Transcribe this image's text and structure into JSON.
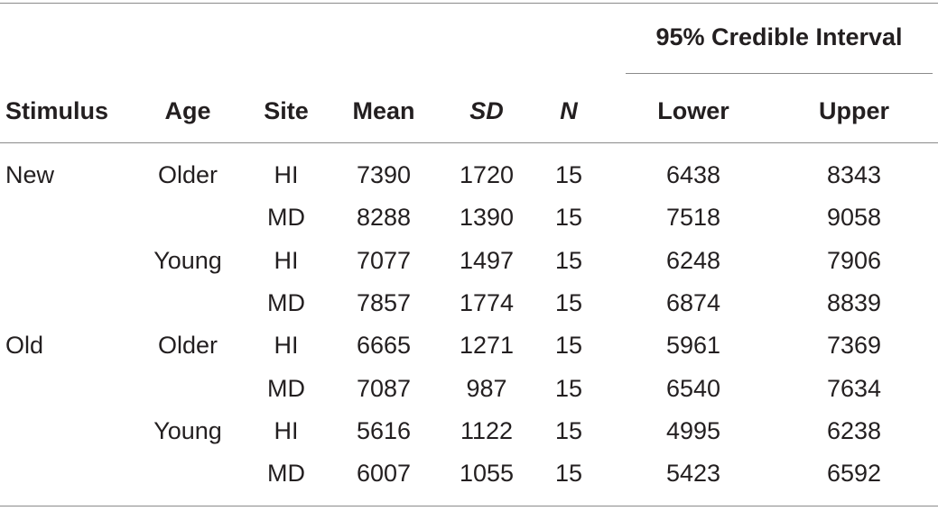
{
  "table": {
    "group_header": "95% Credible Interval",
    "columns": [
      "Stimulus",
      "Age",
      "Site",
      "Mean",
      "SD",
      "N",
      "Lower",
      "Upper"
    ],
    "rows": [
      {
        "stimulus": "New",
        "age": "Older",
        "site": "HI",
        "mean": "7390",
        "sd": "1720",
        "n": "15",
        "lower": "6438",
        "upper": "8343"
      },
      {
        "stimulus": "",
        "age": "",
        "site": "MD",
        "mean": "8288",
        "sd": "1390",
        "n": "15",
        "lower": "7518",
        "upper": "9058"
      },
      {
        "stimulus": "",
        "age": "Young",
        "site": "HI",
        "mean": "7077",
        "sd": "1497",
        "n": "15",
        "lower": "6248",
        "upper": "7906"
      },
      {
        "stimulus": "",
        "age": "",
        "site": "MD",
        "mean": "7857",
        "sd": "1774",
        "n": "15",
        "lower": "6874",
        "upper": "8839"
      },
      {
        "stimulus": "Old",
        "age": "Older",
        "site": "HI",
        "mean": "6665",
        "sd": "1271",
        "n": "15",
        "lower": "5961",
        "upper": "7369"
      },
      {
        "stimulus": "",
        "age": "",
        "site": "MD",
        "mean": "7087",
        "sd": "987",
        "n": "15",
        "lower": "6540",
        "upper": "7634"
      },
      {
        "stimulus": "",
        "age": "Young",
        "site": "HI",
        "mean": "5616",
        "sd": "1122",
        "n": "15",
        "lower": "4995",
        "upper": "6238"
      },
      {
        "stimulus": "",
        "age": "",
        "site": "MD",
        "mean": "6007",
        "sd": "1055",
        "n": "15",
        "lower": "5423",
        "upper": "6592"
      }
    ]
  }
}
